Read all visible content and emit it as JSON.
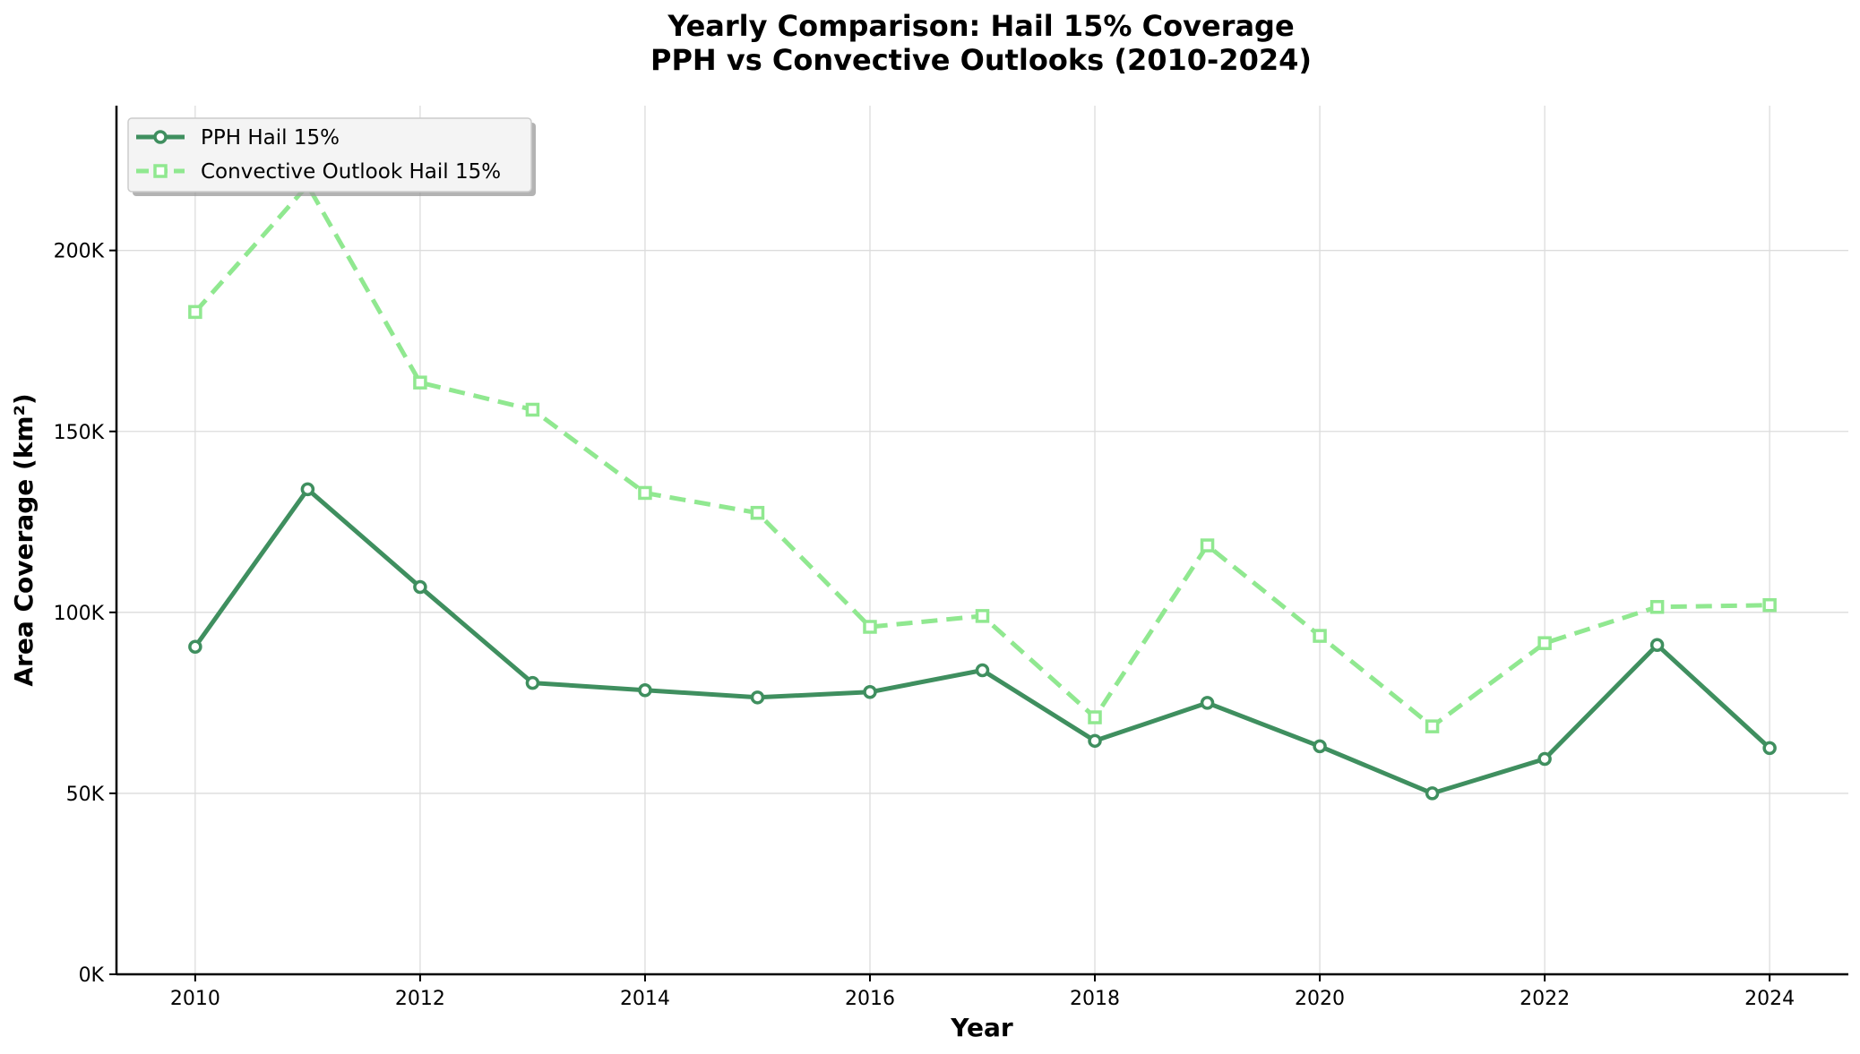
{
  "chart_data": {
    "type": "line",
    "title_line1": "Yearly Comparison: Hail 15% Coverage",
    "title_line2": "PPH vs Convective Outlooks (2010-2024)",
    "xlabel": "Year",
    "ylabel": "Area Coverage (km²)",
    "x": [
      2010,
      2011,
      2012,
      2013,
      2014,
      2015,
      2016,
      2017,
      2018,
      2019,
      2020,
      2021,
      2022,
      2023,
      2024
    ],
    "xlim": [
      2009.3,
      2024.7
    ],
    "ylim": [
      0,
      240000
    ],
    "xticks": [
      2010,
      2012,
      2014,
      2016,
      2018,
      2020,
      2022,
      2024
    ],
    "xtick_labels": [
      "2010",
      "2012",
      "2014",
      "2016",
      "2018",
      "2020",
      "2022",
      "2024"
    ],
    "yticks": [
      0,
      50000,
      100000,
      150000,
      200000
    ],
    "ytick_labels": [
      "0K",
      "50K",
      "100K",
      "150K",
      "200K"
    ],
    "grid": true,
    "legend_position": "top-left",
    "series": [
      {
        "name": "PPH Hail 15%",
        "color": "#3f8f5f",
        "line_style": "solid",
        "marker": "circle",
        "values": [
          90500,
          134000,
          107000,
          80500,
          78500,
          76500,
          78000,
          84000,
          64500,
          75000,
          63000,
          50000,
          59500,
          91000,
          62500
        ]
      },
      {
        "name": "Convective Outlook Hail 15%",
        "color": "#90e890",
        "line_style": "dashed",
        "marker": "square",
        "values": [
          183000,
          218000,
          163500,
          156000,
          133000,
          127500,
          96000,
          99000,
          71000,
          118500,
          93500,
          68500,
          91500,
          101500,
          102000
        ]
      }
    ]
  }
}
